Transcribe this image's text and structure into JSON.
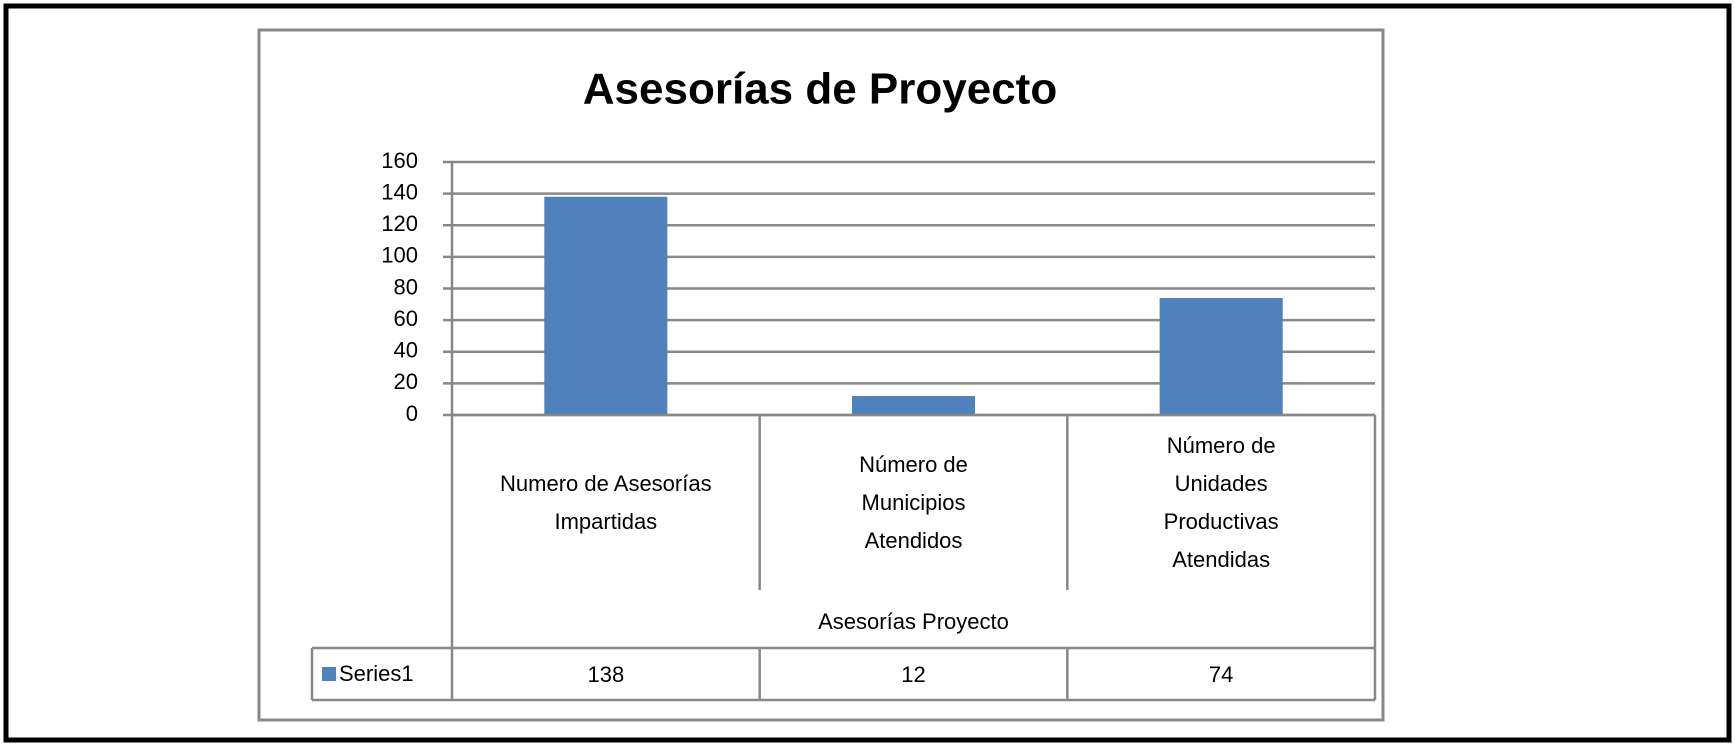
{
  "chart_data": {
    "type": "bar",
    "title": "Asesorías de Proyecto",
    "categories": [
      "Numero de Asesorías Impartidas",
      "Número de Municipios Atendidos",
      "Número de Unidades Productivas Atendidas"
    ],
    "x_label": "Asesorías Proyecto",
    "series": [
      {
        "name": "Series1",
        "color": "#4f81bd",
        "values": [
          138,
          12,
          74
        ]
      }
    ],
    "ylim": [
      0,
      160
    ],
    "yticks": [
      0,
      20,
      40,
      60,
      80,
      100,
      120,
      140,
      160
    ],
    "grid": true,
    "data_table": true
  }
}
